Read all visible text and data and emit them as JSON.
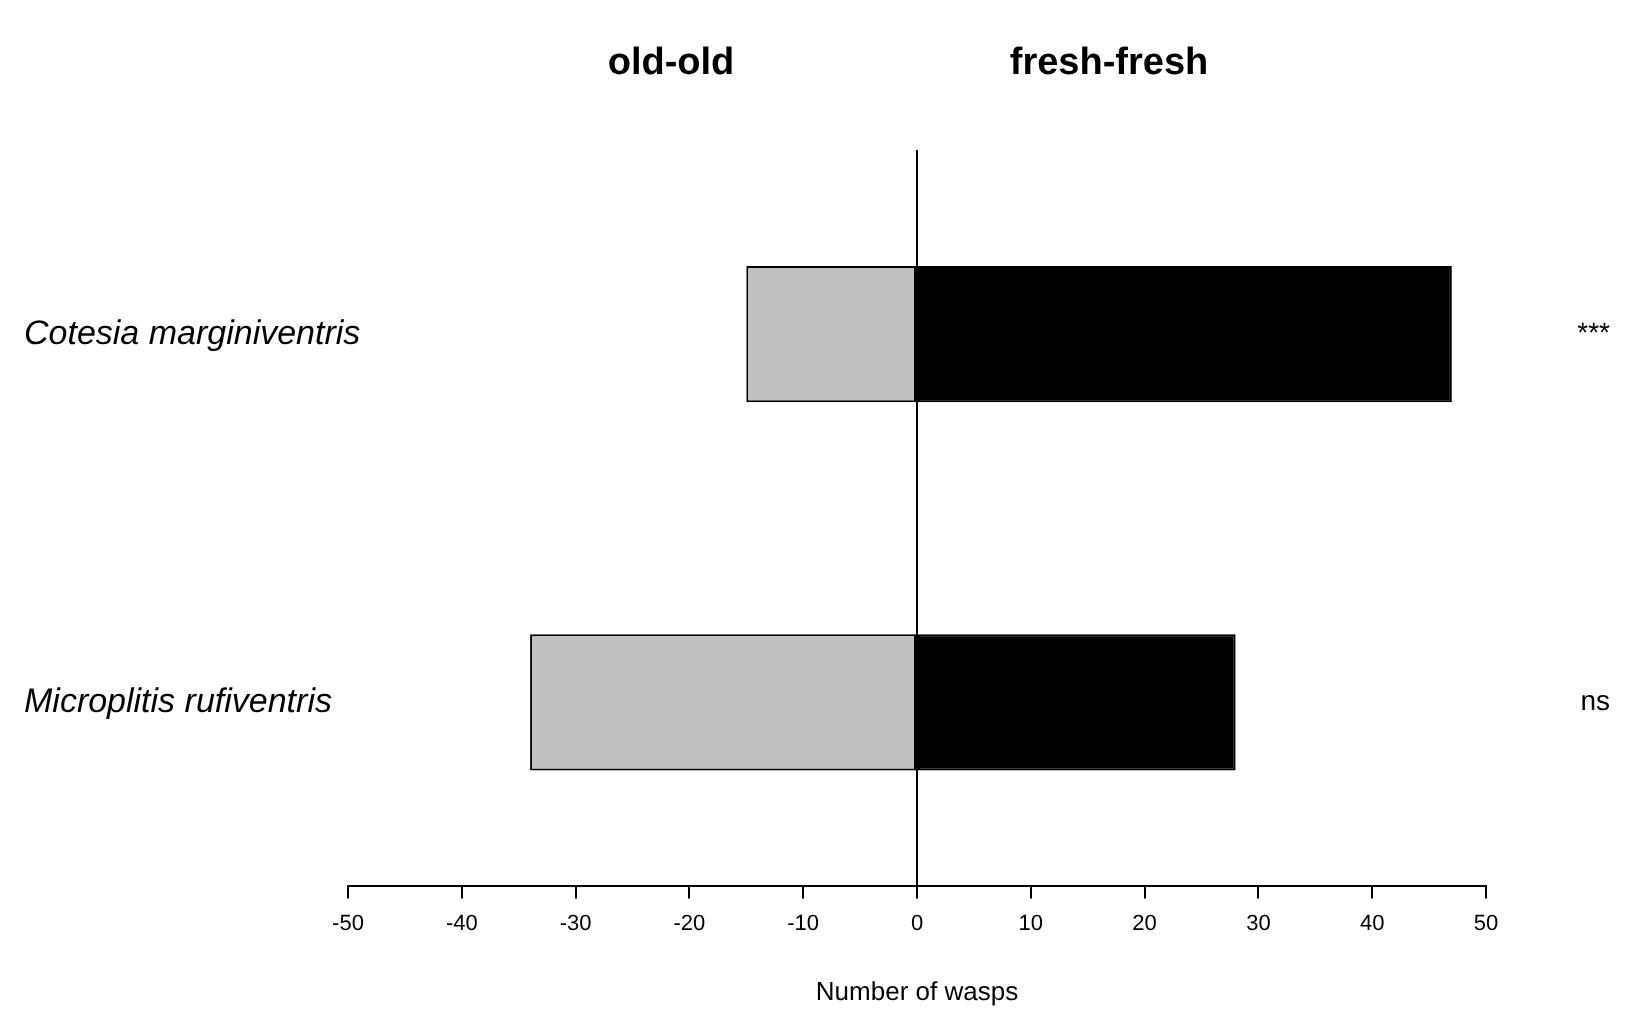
{
  "chart_data": {
    "type": "bar",
    "orientation": "horizontal",
    "stacked": true,
    "categories": [
      "Cotesia marginiventris",
      "Microplitis rufiventris"
    ],
    "series": [
      {
        "color": "#c0c0c0",
        "values": [
          -15,
          -34
        ]
      },
      {
        "color": "#000000",
        "values": [
          47,
          28
        ]
      }
    ],
    "xlabel": "Number of wasps",
    "xlim": [
      -50,
      50
    ],
    "xticks": [
      -50,
      -40,
      -30,
      -20,
      -10,
      0,
      10,
      20,
      30,
      40,
      50
    ],
    "ref_lines": [
      {
        "axis": "x",
        "value": 0
      }
    ],
    "annotations": [
      "old-old",
      "fresh-fresh",
      "***",
      "ns"
    ],
    "grid": false,
    "legend": false
  }
}
